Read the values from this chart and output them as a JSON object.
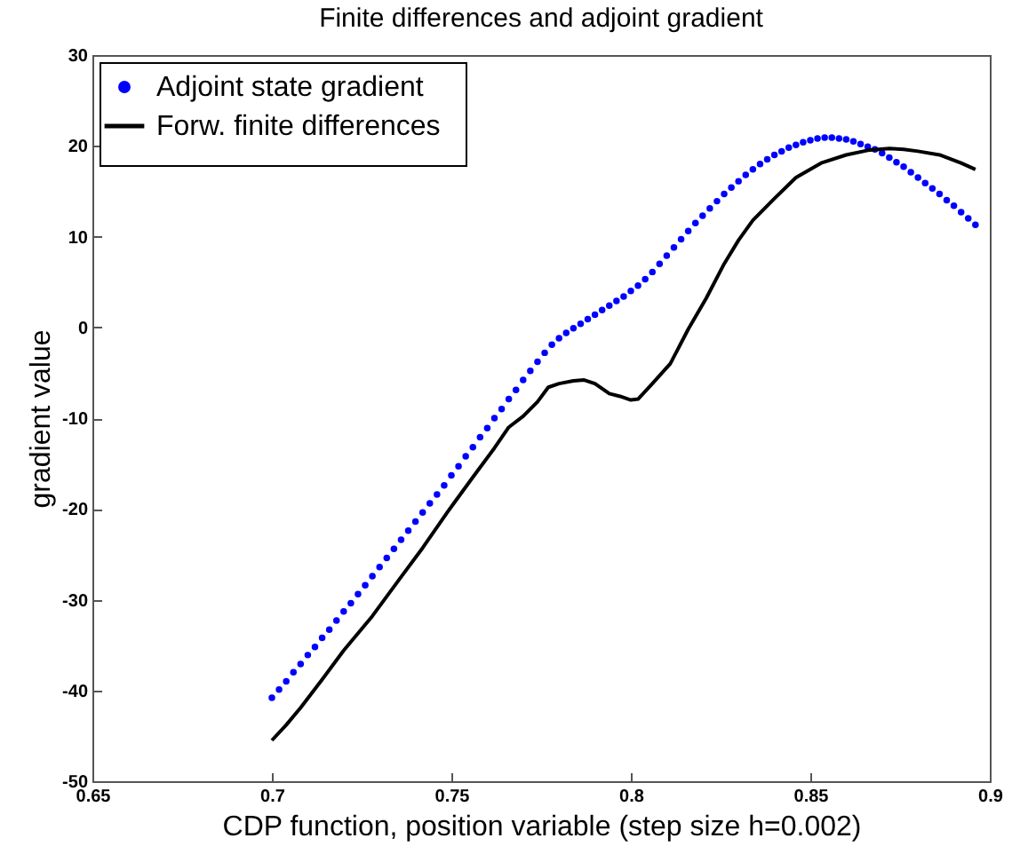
{
  "chart_data": {
    "type": "line",
    "title": "Finite differences and adjoint gradient",
    "xlabel": "CDP function, position variable (step size h=0.002)",
    "ylabel": "gradient value",
    "xlim": [
      0.65,
      0.9
    ],
    "xticks": [
      0.65,
      0.7,
      0.75,
      0.8,
      0.85,
      0.9
    ],
    "ylim": [
      -50,
      30
    ],
    "yticks": [
      -50,
      -40,
      -30,
      -20,
      -10,
      0,
      10,
      20,
      30
    ],
    "grid": false,
    "legend": "top left",
    "series": [
      {
        "name": "Adjoint state gradient",
        "type": "scatter",
        "marker": "circle",
        "color": "#0000ff",
        "x": [
          0.7,
          0.702,
          0.704,
          0.706,
          0.708,
          0.71,
          0.712,
          0.714,
          0.716,
          0.718,
          0.72,
          0.722,
          0.724,
          0.726,
          0.728,
          0.73,
          0.732,
          0.734,
          0.736,
          0.738,
          0.74,
          0.742,
          0.744,
          0.746,
          0.748,
          0.75,
          0.752,
          0.754,
          0.756,
          0.758,
          0.76,
          0.762,
          0.764,
          0.766,
          0.768,
          0.77,
          0.772,
          0.774,
          0.776,
          0.778,
          0.78,
          0.782,
          0.784,
          0.786,
          0.788,
          0.79,
          0.792,
          0.794,
          0.796,
          0.798,
          0.8,
          0.802,
          0.804,
          0.806,
          0.808,
          0.81,
          0.812,
          0.814,
          0.816,
          0.818,
          0.82,
          0.822,
          0.824,
          0.826,
          0.828,
          0.83,
          0.832,
          0.834,
          0.836,
          0.838,
          0.84,
          0.842,
          0.844,
          0.846,
          0.848,
          0.85,
          0.852,
          0.854,
          0.856,
          0.858,
          0.86,
          0.862,
          0.864,
          0.866,
          0.868,
          0.87,
          0.872,
          0.874,
          0.876,
          0.878,
          0.88,
          0.882,
          0.884,
          0.886,
          0.888,
          0.89,
          0.892,
          0.894,
          0.896
        ],
        "values": [
          -40.8,
          -39.9,
          -39.0,
          -38.0,
          -37.1,
          -36.1,
          -35.2,
          -34.2,
          -33.3,
          -32.3,
          -31.3,
          -30.4,
          -29.4,
          -28.4,
          -27.4,
          -26.4,
          -25.4,
          -24.4,
          -23.4,
          -22.4,
          -21.4,
          -20.4,
          -19.4,
          -18.4,
          -17.4,
          -16.3,
          -15.3,
          -14.2,
          -13.2,
          -12.1,
          -11.1,
          -10.0,
          -9.0,
          -7.9,
          -6.9,
          -5.8,
          -4.8,
          -3.8,
          -2.8,
          -1.9,
          -1.2,
          -0.6,
          -0.1,
          0.4,
          0.9,
          1.4,
          1.9,
          2.4,
          2.9,
          3.4,
          4.0,
          4.6,
          5.3,
          6.1,
          7.0,
          7.9,
          8.8,
          9.7,
          10.6,
          11.5,
          12.3,
          13.1,
          13.9,
          14.7,
          15.4,
          16.1,
          16.8,
          17.4,
          18.0,
          18.5,
          19.0,
          19.4,
          19.8,
          20.1,
          20.4,
          20.6,
          20.8,
          20.9,
          20.9,
          20.8,
          20.7,
          20.5,
          20.2,
          19.9,
          19.6,
          19.2,
          18.7,
          18.2,
          17.7,
          17.1,
          16.5,
          15.9,
          15.3,
          14.7,
          14.0,
          13.4,
          12.7,
          12.0,
          11.3
        ]
      },
      {
        "name": "Forw. finite differences",
        "color": "#000000",
        "x": [
          0.7,
          0.704,
          0.708,
          0.714,
          0.72,
          0.728,
          0.736,
          0.742,
          0.749,
          0.756,
          0.762,
          0.766,
          0.77,
          0.774,
          0.777,
          0.78,
          0.784,
          0.787,
          0.79,
          0.794,
          0.797,
          0.8,
          0.802,
          0.806,
          0.811,
          0.816,
          0.821,
          0.826,
          0.83,
          0.834,
          0.84,
          0.846,
          0.853,
          0.86,
          0.866,
          0.872,
          0.876,
          0.88,
          0.886,
          0.892,
          0.896
        ],
        "values": [
          -45.5,
          -43.8,
          -41.9,
          -38.8,
          -35.6,
          -31.8,
          -27.5,
          -24.3,
          -20.3,
          -16.5,
          -13.3,
          -11.0,
          -9.8,
          -8.2,
          -6.6,
          -6.2,
          -5.9,
          -5.8,
          -6.2,
          -7.3,
          -7.6,
          -8.0,
          -7.9,
          -6.2,
          -4.0,
          -0.2,
          3.2,
          7.0,
          9.6,
          11.8,
          14.2,
          16.5,
          18.1,
          19.0,
          19.5,
          19.7,
          19.6,
          19.4,
          19.0,
          18.1,
          17.4
        ]
      }
    ]
  }
}
